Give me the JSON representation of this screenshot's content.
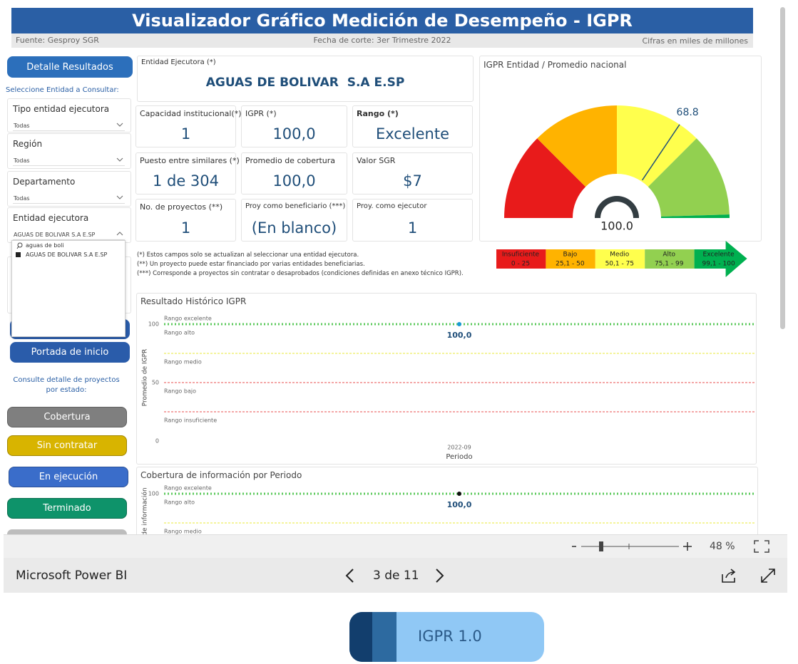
{
  "header": {
    "title": "Visualizador Gráfico Medición de Desempeño - IGPR",
    "source": "Fuente: Gesproy SGR",
    "cutoff": "Fecha de corte: 3er Trimestre 2022",
    "units": "Cifras en miles de millones"
  },
  "sidebar": {
    "detail_button": "Detalle Resultados",
    "select_prompt": "Seleccione Entidad a Consultar:",
    "filters": [
      {
        "label": "Tipo entidad ejecutora",
        "value": "Todas"
      },
      {
        "label": "Región",
        "value": "Todas"
      },
      {
        "label": "Departamento",
        "value": "Todas"
      },
      {
        "label": "Entidad ejecutora",
        "value": "AGUAS DE BOLIVAR S.A E.SP"
      }
    ],
    "search_text": "aguas de boli",
    "search_result": "AGUAS DE BOLIVAR S.A E.SP",
    "home_button": "Portada de inicio",
    "projects_prompt": "Consulte detalle de proyectos por estado:",
    "state_buttons": [
      {
        "label": "Cobertura",
        "color": "#7f7f7f"
      },
      {
        "label": "Sin contratar",
        "color": "#d8b400"
      },
      {
        "label": "En ejecución",
        "color": "#3a6dca"
      },
      {
        "label": "Terminado",
        "color": "#0e936a"
      }
    ]
  },
  "entity": {
    "label": "Entidad Ejecutora (*)",
    "name": "AGUAS DE BOLIVAR  S.A E.SP"
  },
  "cards": [
    {
      "label": "Capacidad institucional(*)",
      "value": "1"
    },
    {
      "label": "IGPR (*)",
      "value": "100,0"
    },
    {
      "label": "Rango (*)",
      "value": "Excelente"
    },
    {
      "label": "Puesto entre similares (*)",
      "value": "1 de 304"
    },
    {
      "label": "Promedio de cobertura",
      "value": "100,0"
    },
    {
      "label": "Valor SGR",
      "value": "$7"
    },
    {
      "label": "No. de proyectos (**)",
      "value": "1"
    },
    {
      "label": "Proy como beneficiario (***)",
      "value": "(En blanco)"
    },
    {
      "label": "Proy. como ejecutor",
      "value": "1"
    }
  ],
  "notes": [
    "(*) Estos campos solo se actualizan al seleccionar una entidad ejecutora.",
    "(**) Un proyecto puede estar financiado por varias entidades beneficiarias.",
    "(***) Corresponde a proyectos sin contratar o desaprobados (condiciones definidas en anexo técnico IGPR)."
  ],
  "gauge": {
    "title": "IGPR Entidad / Promedio nacional",
    "min": 0,
    "max": 100,
    "value": 100,
    "value_label": "100.0",
    "average": 68.8,
    "band_edges": [
      0,
      25,
      50,
      75,
      99,
      100
    ],
    "legend": [
      {
        "name": "Insuficiente",
        "range": "0 - 25",
        "color": "#e81b1b"
      },
      {
        "name": "Bajo",
        "range": "25,1 - 50",
        "color": "#ffb300"
      },
      {
        "name": "Medio",
        "range": "50,1 - 75",
        "color": "#ffff4d"
      },
      {
        "name": "Alto",
        "range": "75,1 - 99",
        "color": "#92d050"
      },
      {
        "name": "Excelente",
        "range": "99,1 - 100",
        "color": "#00b050"
      }
    ]
  },
  "history_chart": {
    "type": "line",
    "title": "Resultado Histórico IGPR",
    "y_label": "Promedio de IGPR",
    "x_label": "Periodo",
    "x": [
      "2022-09"
    ],
    "values": [
      100
    ],
    "value_labels": [
      "100,0"
    ],
    "color": "#1a9ad6",
    "ylim": [
      0,
      100
    ],
    "yticks": [
      0,
      50,
      100
    ],
    "reference_lines": [
      {
        "value": 100,
        "color": "#5cc95c"
      },
      {
        "value": 75,
        "color": "#f0f07a"
      },
      {
        "value": 50,
        "color": "#f08a8a"
      },
      {
        "value": 25,
        "color": "#f08a8a"
      }
    ],
    "band_labels": [
      "Rango excelente",
      "Rango alto",
      "Rango medio",
      "Rango bajo",
      "Rango insuficiente"
    ]
  },
  "coverage_chart": {
    "type": "line",
    "title": "Cobertura de información por Periodo",
    "y_label": "de información",
    "values": [
      100
    ],
    "value_labels": [
      "100,0"
    ],
    "color": "#111111",
    "ylim": [
      0,
      100
    ],
    "yticks": [
      100
    ],
    "reference_lines": [
      {
        "value": 100,
        "color": "#5cc95c"
      },
      {
        "value": 75,
        "color": "#f0f07a"
      }
    ],
    "band_labels": [
      "Rango excelente",
      "Rango alto",
      "Rango medio"
    ]
  },
  "footer": {
    "zoom": "48 %",
    "app_name": "Microsoft Power BI",
    "page_indicator": "3 de 11",
    "tab_button": "IGPR 1.0"
  }
}
